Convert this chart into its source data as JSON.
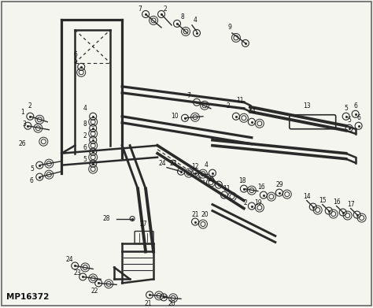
{
  "background_color": "#f5f5f0",
  "border_color": "#888888",
  "watermark_text": "MP16372",
  "watermark_fontsize": 7.5,
  "watermark_fontweight": "bold",
  "figsize": [
    4.74,
    3.91
  ],
  "dpi": 100,
  "line_color": "#2a2a2a",
  "label_color": "#111111",
  "label_fontsize": 5.5
}
